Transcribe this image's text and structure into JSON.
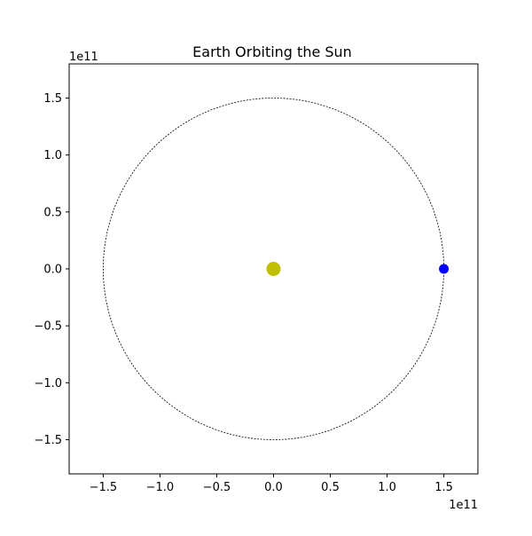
{
  "chart_data": {
    "type": "scatter",
    "title": "Earth Orbiting the Sun",
    "xlabel": "",
    "ylabel": "",
    "xlim": [
      -180000000000.0,
      180000000000.0
    ],
    "ylim": [
      -180000000000.0,
      180000000000.0
    ],
    "x_ticks": [
      -150000000000.0,
      -100000000000.0,
      -50000000000.0,
      0,
      50000000000.0,
      100000000000.0,
      150000000000.0
    ],
    "x_tick_labels": [
      "−1.5",
      "−1.0",
      "−0.5",
      "0.0",
      "0.5",
      "1.0",
      "1.5"
    ],
    "y_ticks": [
      150000000000.0,
      100000000000.0,
      50000000000.0,
      0,
      -50000000000.0,
      -100000000000.0,
      -150000000000.0
    ],
    "y_tick_labels": [
      "1.5",
      "1.0",
      "0.5",
      "0.0",
      "−0.5",
      "−1.0",
      "−1.5"
    ],
    "x_offset_label": "1e11",
    "y_offset_label": "1e11",
    "grid": false,
    "orbit": {
      "center": [
        0,
        0
      ],
      "radius": 150000000000.0,
      "style": "dotted",
      "color": "#000000"
    },
    "points": [
      {
        "label": "sun",
        "x": 0,
        "y": 0,
        "color": "#bfbf00"
      },
      {
        "label": "earth",
        "x": 150000000000.0,
        "y": 0,
        "color": "#0000ff"
      }
    ]
  }
}
